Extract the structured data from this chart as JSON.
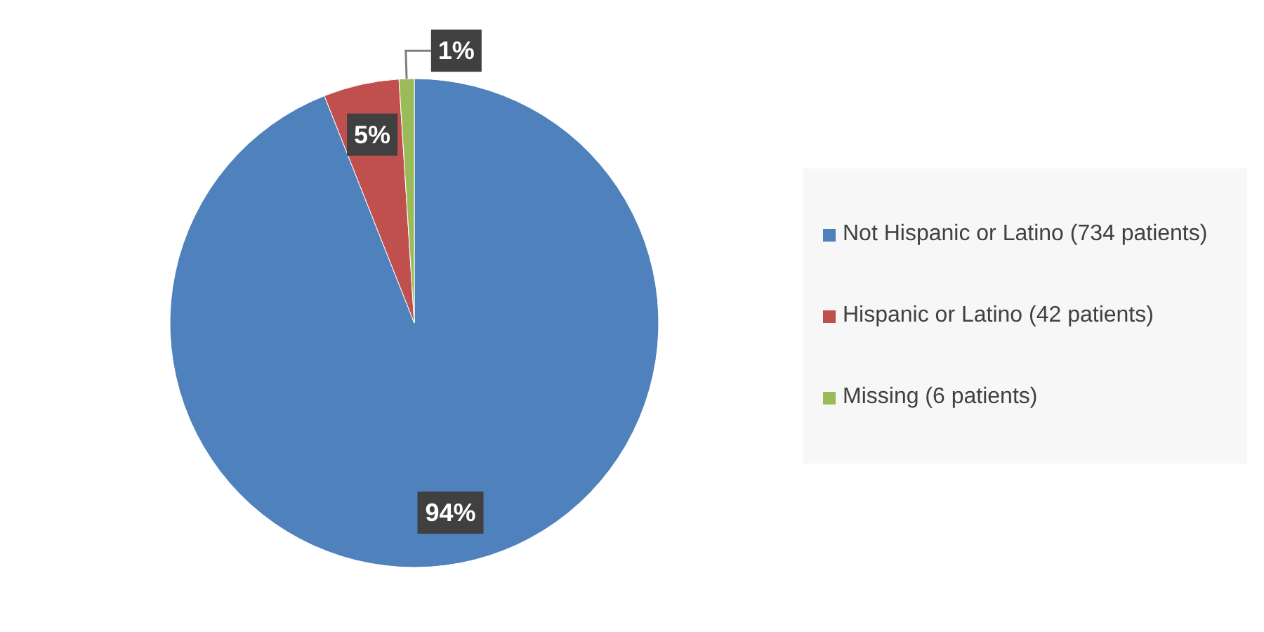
{
  "chart_data": {
    "type": "pie",
    "categories": [
      "Not Hispanic or Latino (734 patients)",
      "Hispanic or Latino (42 patients)",
      "Missing (6 patients)"
    ],
    "values": [
      94,
      5,
      1
    ],
    "colors": [
      "#4f81bd",
      "#c0504d",
      "#9bbb59"
    ],
    "value_labels": [
      "94%",
      "5%",
      "1%"
    ],
    "legend": "right"
  }
}
